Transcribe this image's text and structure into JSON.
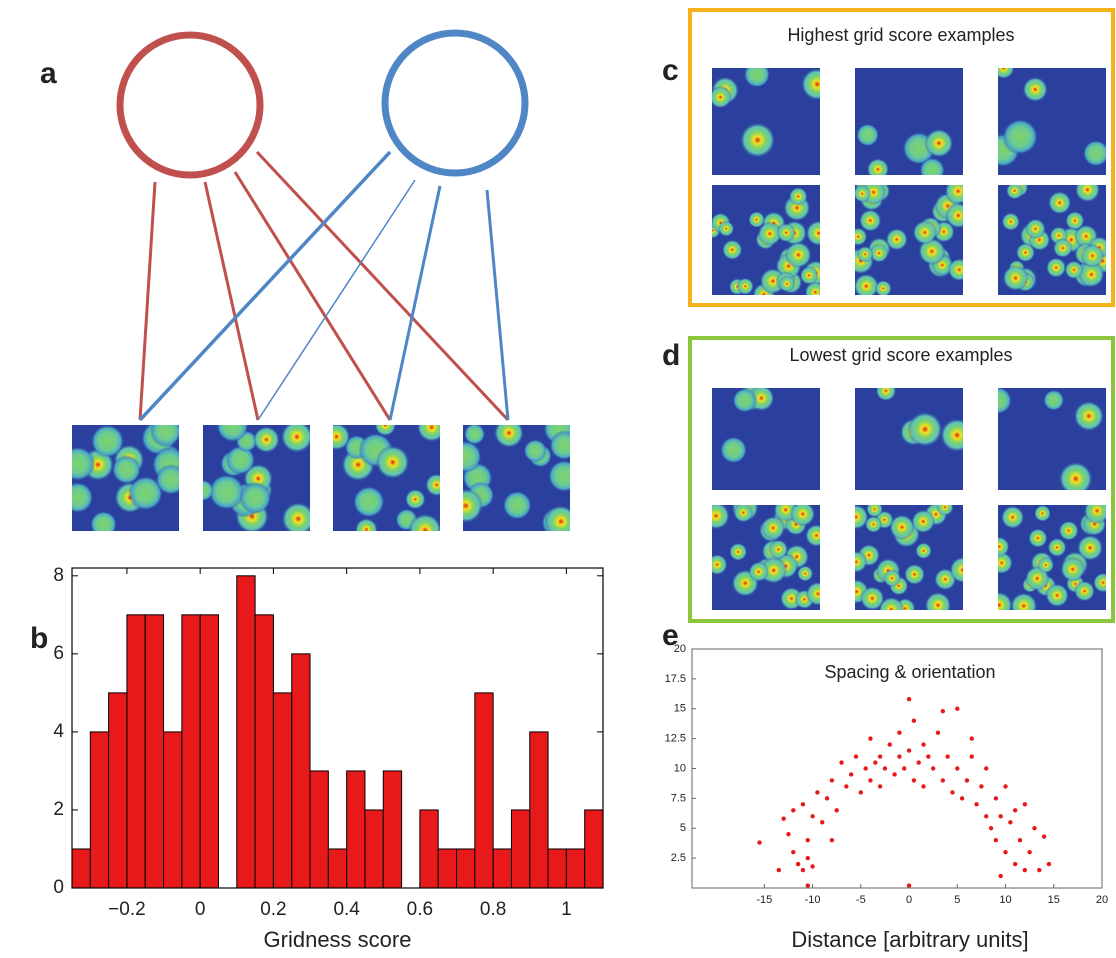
{
  "panel_labels": [
    "a",
    "b",
    "c",
    "d",
    "e"
  ],
  "panel_c": {
    "title": "Highest grid score examples"
  },
  "panel_d": {
    "title": "Lowest grid score examples"
  },
  "chart_data": [
    {
      "type": "histogram",
      "xlabel": "Gridness score",
      "color": "#e8191b",
      "bins": [
        -0.35,
        -0.3,
        -0.25,
        -0.2,
        -0.15,
        -0.1,
        -0.05,
        0,
        0.05,
        0.1,
        0.15,
        0.2,
        0.25,
        0.3,
        0.35,
        0.4,
        0.45,
        0.5,
        0.55,
        0.6,
        0.65,
        0.7,
        0.75,
        0.8,
        0.85,
        0.9,
        0.95,
        1,
        1.05,
        1.1
      ],
      "values": [
        1,
        4,
        5,
        7,
        7,
        4,
        7,
        7,
        0,
        8,
        7,
        5,
        6,
        3,
        1,
        3,
        2,
        3,
        0,
        2,
        1,
        1,
        5,
        1,
        2,
        4,
        1,
        1,
        2
      ],
      "xlim": [
        -0.35,
        1.1
      ],
      "ylim": [
        0,
        8.2
      ],
      "xticks": [
        {
          "value": -0.2,
          "label": "−0.2"
        },
        0,
        0.2,
        0.4,
        0.6,
        0.8,
        1
      ],
      "yticks": [
        0,
        2,
        4,
        6,
        8
      ]
    },
    {
      "type": "scatter",
      "title": "Spacing & orientation",
      "xlabel": "Distance [arbitrary units]",
      "color": "#e8191b",
      "x": [
        -15.5,
        -13,
        -12.5,
        -12,
        -11.5,
        -11,
        -10.5,
        -10,
        -10.5,
        -12,
        -11,
        -10,
        -9.5,
        -9,
        -8.5,
        -8,
        -7.5,
        -7,
        -6.5,
        -6,
        -5.5,
        -5,
        -4.5,
        -4,
        -4,
        -3.5,
        -3,
        -3,
        -2.5,
        -2,
        -1.5,
        -1,
        -1,
        -0.5,
        0,
        0,
        0.5,
        0.5,
        1,
        1.5,
        1.5,
        2,
        2.5,
        3,
        3.5,
        3.5,
        4,
        4.5,
        5,
        5,
        5.5,
        6,
        6.5,
        7,
        7.5,
        8,
        8,
        8.5,
        9,
        9,
        9.5,
        10,
        10,
        10.5,
        11,
        11,
        11.5,
        12,
        12,
        12.5,
        13,
        14,
        14.5,
        -10.5,
        0,
        9.5,
        13.5,
        -8,
        -13.5,
        6.5
      ],
      "values": [
        3.8,
        5.8,
        4.5,
        3,
        2,
        1.5,
        2.5,
        1.8,
        4,
        6.5,
        7,
        6,
        8,
        5.5,
        7.5,
        9,
        6.5,
        10.5,
        8.5,
        9.5,
        11,
        8,
        10,
        9,
        12.5,
        10.5,
        11,
        8.5,
        10,
        12,
        9.5,
        11,
        13,
        10,
        15.8,
        11.5,
        9,
        14,
        10.5,
        12,
        8.5,
        11,
        10,
        13,
        9,
        14.8,
        11,
        8,
        15,
        10,
        7.5,
        9,
        11,
        7,
        8.5,
        6,
        10,
        5,
        7.5,
        4,
        6,
        3,
        8.5,
        5.5,
        2,
        6.5,
        4,
        1.5,
        7,
        3,
        5,
        4.3,
        2,
        0.2,
        0.2,
        1,
        1.5,
        4,
        1.5,
        12.5
      ],
      "xlim": [
        -22.5,
        20
      ],
      "ylim": [
        0,
        20
      ],
      "xticks": [
        -15,
        -10,
        -5,
        0,
        5,
        10,
        15,
        20
      ],
      "yticks": [
        2.5,
        5,
        7.5,
        10,
        12.5,
        15,
        17.5,
        20
      ]
    }
  ]
}
